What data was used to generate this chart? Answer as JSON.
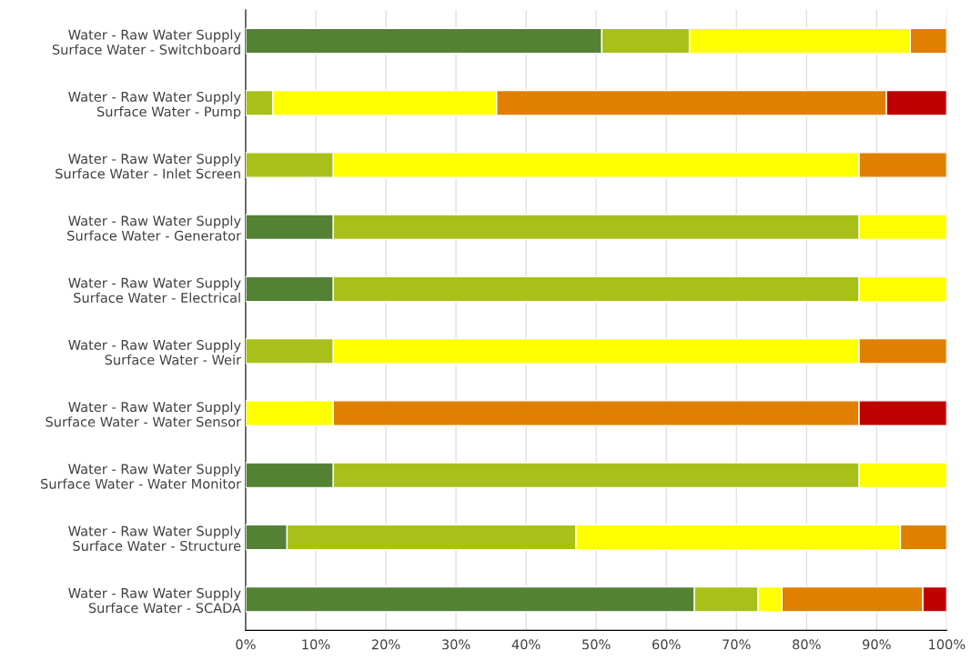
{
  "chart_data": {
    "type": "bar",
    "orientation": "horizontal",
    "stacked": true,
    "categories": [
      "Water - Raw Water Supply\nSurface Water - Switchboard",
      "Water - Raw Water Supply\nSurface Water - Pump",
      "Water - Raw Water Supply\nSurface Water - Inlet Screen",
      "Water - Raw Water Supply\nSurface Water - Generator",
      "Water - Raw Water Supply\nSurface Water - Electrical",
      "Water - Raw Water Supply\nSurface Water - Weir",
      "Water - Raw Water Supply\nSurface Water - Water Sensor",
      "Water - Raw Water Supply\nSurface Water - Water Monitor",
      "Water - Raw Water Supply\nSurface Water - Structure",
      "Water - Raw Water Supply\nSurface Water - SCADA"
    ],
    "series": [
      {
        "color": "#548235",
        "values": [
          50.8,
          null,
          null,
          12.5,
          12.5,
          null,
          null,
          12.5,
          5.9,
          64.0
        ]
      },
      {
        "color": "#a9c01a",
        "values": [
          12.5,
          3.9,
          12.5,
          75,
          75,
          12.5,
          null,
          75,
          41.2,
          9.1
        ]
      },
      {
        "color": "#ffff00",
        "values": [
          31.5,
          31.9,
          75,
          12.5,
          12.5,
          75,
          12.5,
          12.5,
          46.3,
          3.4
        ]
      },
      {
        "color": "#e07f00",
        "values": [
          5.2,
          55.6,
          12.5,
          null,
          null,
          12.5,
          75,
          null,
          6.6,
          20.1
        ]
      },
      {
        "color": "#c00000",
        "values": [
          null,
          8.6,
          null,
          null,
          null,
          null,
          12.5,
          null,
          null,
          3.4
        ]
      }
    ],
    "xlim": [
      0,
      100
    ],
    "xticks": [
      {
        "value": 0,
        "label": "0%"
      },
      {
        "value": 10,
        "label": "10%"
      },
      {
        "value": 20,
        "label": "20%"
      },
      {
        "value": 30,
        "label": "30%"
      },
      {
        "value": 40,
        "label": "40%"
      },
      {
        "value": 50,
        "label": "50%"
      },
      {
        "value": 60,
        "label": "60%"
      },
      {
        "value": 70,
        "label": "70%"
      },
      {
        "value": 80,
        "label": "80%"
      },
      {
        "value": 90,
        "label": "90%"
      },
      {
        "value": 100,
        "label": "100%"
      }
    ],
    "grid": "x",
    "legend": false
  }
}
